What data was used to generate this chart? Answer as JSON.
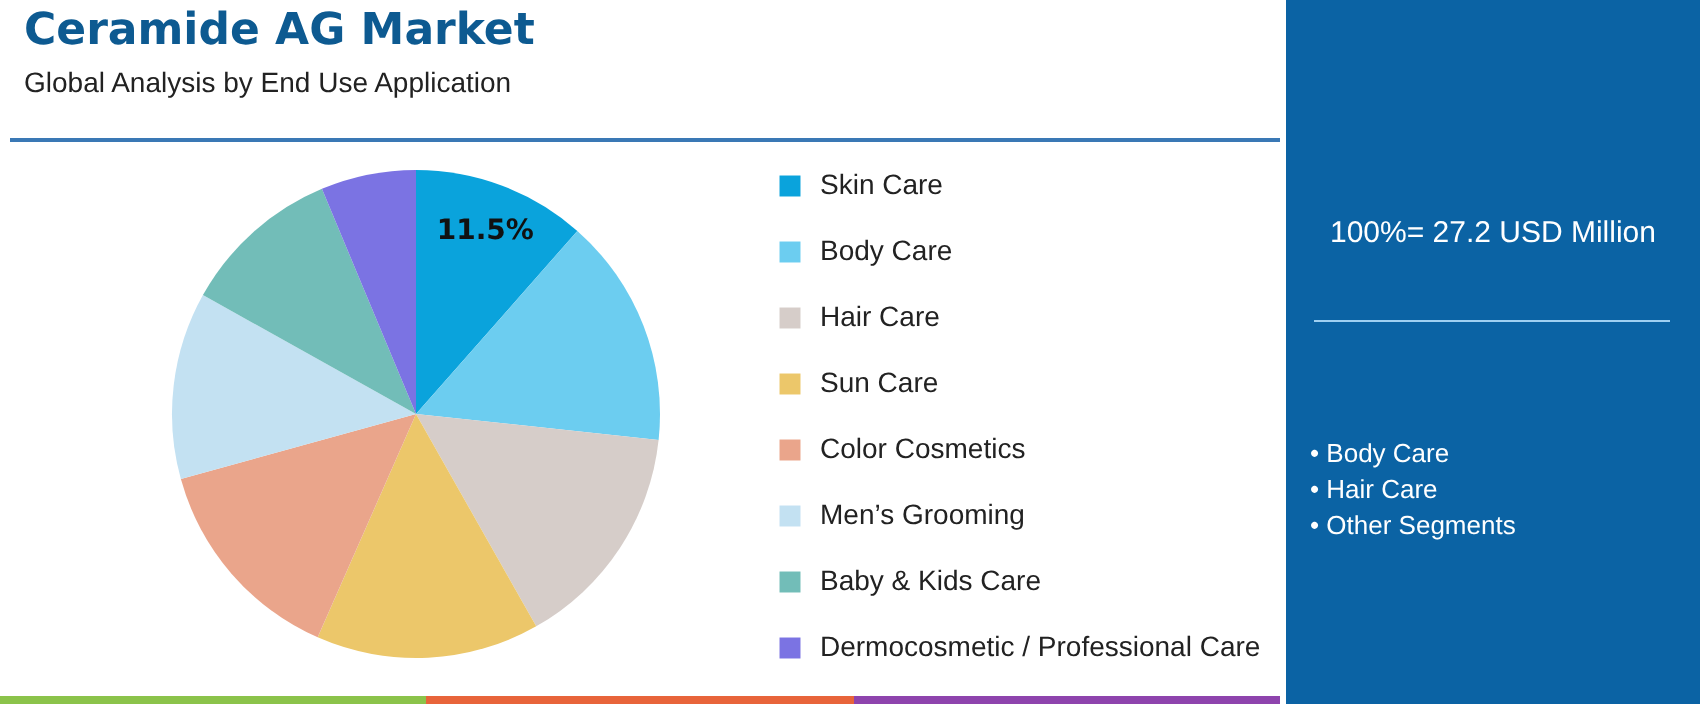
{
  "chart_data": {
    "type": "pie",
    "title": "Ceramide AG Market",
    "subtitle": "Global Analysis by End Use Application",
    "categories": [
      "Skin Care",
      "Body Care",
      "Hair Care",
      "Sun Care",
      "Color Cosmetics",
      "Men’s Grooming",
      "Baby & Kids Care",
      "Dermocosmetic / Professional Care"
    ],
    "values": [
      11.5,
      15.2,
      15.1,
      14.8,
      14.1,
      12.4,
      10.6,
      6.3
    ],
    "colors": [
      "#0aa3dc",
      "#6ccdf0",
      "#d6cdc9",
      "#ecc76a",
      "#eaa58b",
      "#c3e1f2",
      "#72bdb8",
      "#7b73e3"
    ],
    "value_labels": [
      "11.5%",
      null,
      null,
      null,
      null,
      null,
      null,
      null
    ],
    "legend": "right",
    "annotations": [
      "100%= 27.2 USD Million",
      "• Body Care",
      "• Hair Care",
      "• Other Segments"
    ]
  }
}
